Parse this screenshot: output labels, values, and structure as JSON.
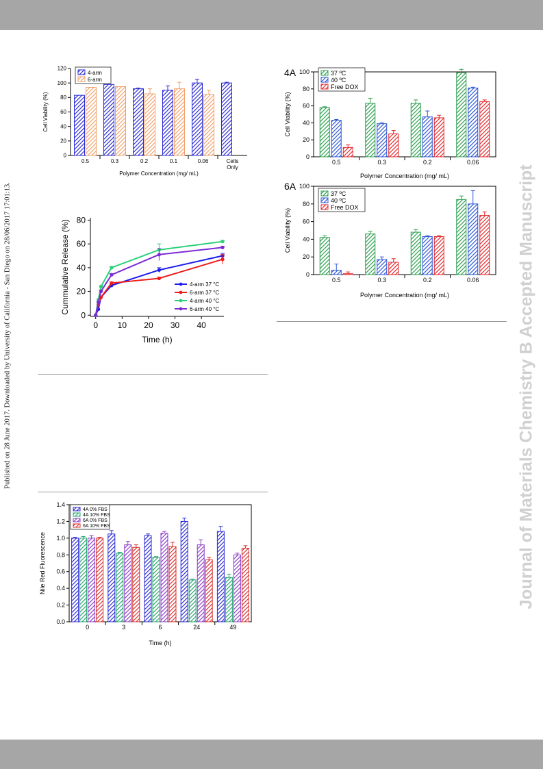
{
  "watermark": {
    "side_note": "Published on 28 June 2017. Downloaded by University of California - San Diego on 28/06/2017 17:01:13.",
    "journal": "Journal of Materials Chemistry B Accepted Manuscript"
  },
  "colors": {
    "band": "#a6a6a6",
    "rule": "#9a9a9a",
    "watermark": "#d0d0d0"
  },
  "chart_data": [
    {
      "id": "arms_viability",
      "type": "bar",
      "title": "",
      "xlabel": "Polymer Concentration (mg/ mL)",
      "ylabel": "Cell Viability (%)",
      "ylim": [
        0,
        120
      ],
      "yticks": [
        0,
        20,
        40,
        60,
        80,
        100,
        120
      ],
      "categories": [
        "0.5",
        "0.3",
        "0.2",
        "0.1",
        "0.06",
        "Cells Only"
      ],
      "legend_position": "top-left",
      "series": [
        {
          "name": "4-arm",
          "color": "#2b2bd6",
          "values": [
            83,
            98,
            92,
            90,
            100,
            100
          ],
          "errors": [
            0,
            6,
            1,
            6,
            5,
            1
          ]
        },
        {
          "name": "6-arm",
          "color": "#f2a06a",
          "values": [
            94,
            95,
            85,
            92,
            84,
            null
          ],
          "errors": [
            0,
            0,
            7,
            9,
            6,
            0
          ]
        }
      ]
    },
    {
      "id": "release",
      "type": "line",
      "title": "",
      "xlabel": "Time (h)",
      "ylabel": "Cummulative Release (%)",
      "xlim": [
        -2,
        48.5
      ],
      "ylim": [
        -1,
        82
      ],
      "xticks": [
        0,
        10,
        20,
        30,
        40
      ],
      "yticks": [
        0,
        20,
        40,
        60,
        80
      ],
      "x": [
        0,
        1,
        2,
        6,
        24,
        48
      ],
      "legend_position": "bottom-right",
      "series": [
        {
          "name": "4-arm 37 °C",
          "color": "#1c1cf0",
          "values": [
            0,
            5,
            15,
            25,
            38,
            50
          ],
          "errors": [
            0,
            0,
            1,
            1,
            2,
            2
          ]
        },
        {
          "name": "6-arm 37 °C",
          "color": "#ee1c1c",
          "values": [
            0,
            9,
            15,
            27,
            31,
            47
          ],
          "errors": [
            0,
            0,
            1,
            1,
            1,
            4
          ]
        },
        {
          "name": "4-arm 40 °C",
          "color": "#2bd17a",
          "values": [
            0,
            13,
            24,
            40,
            55,
            62
          ],
          "errors": [
            0,
            0,
            1,
            1,
            5,
            1
          ]
        },
        {
          "name": "6-arm 40 °C",
          "color": "#7a2bd6",
          "values": [
            0,
            11,
            20,
            34,
            51,
            57
          ],
          "errors": [
            0,
            0,
            1,
            1,
            5,
            1
          ]
        }
      ]
    },
    {
      "id": "fbs",
      "type": "bar",
      "title": "",
      "xlabel": "Time (h)",
      "ylabel": "Nile Red Fluorescence",
      "ylim": [
        0,
        1.4
      ],
      "yticks": [
        "0.0",
        "0.2",
        "0.4",
        "0.6",
        "0.8",
        "1.0",
        "1.2",
        "1.4"
      ],
      "categories": [
        "0",
        "3",
        "6",
        "24",
        "49"
      ],
      "legend_position": "top-left",
      "series": [
        {
          "name": "4A  0% FBS",
          "color": "#2b2bd6",
          "values": [
            1.0,
            1.05,
            1.03,
            1.2,
            1.08
          ],
          "errors": [
            0.01,
            0.04,
            0.02,
            0.04,
            0.06
          ]
        },
        {
          "name": "4A 10% FBS",
          "color": "#27a36e",
          "values": [
            1.0,
            0.82,
            0.77,
            0.5,
            0.53
          ],
          "errors": [
            0.02,
            0.01,
            0.01,
            0.01,
            0.04
          ]
        },
        {
          "name": "6A  0% FBS",
          "color": "#8a3cc6",
          "values": [
            1.0,
            0.92,
            1.06,
            0.92,
            0.8
          ],
          "errors": [
            0.03,
            0.04,
            0.02,
            0.06,
            0.02
          ]
        },
        {
          "name": "6A 10% FBS",
          "color": "#d8302f",
          "values": [
            1.0,
            0.89,
            0.9,
            0.74,
            0.88
          ],
          "errors": [
            0.01,
            0.03,
            0.05,
            0.03,
            0.03
          ]
        }
      ]
    },
    {
      "id": "dox_4a",
      "type": "bar",
      "title": "4A",
      "xlabel": "Polymer Concentration (mg/ mL)",
      "ylabel": "Cell Viability (%)",
      "ylim": [
        0,
        100
      ],
      "yticks": [
        0,
        20,
        40,
        60,
        80,
        100
      ],
      "categories": [
        "0.5",
        "0.3",
        "0.2",
        "0.06"
      ],
      "legend_position": "top-left",
      "series": [
        {
          "name": "37 ºC",
          "color": "#2a9e4c",
          "values": [
            58,
            63,
            63,
            99
          ],
          "errors": [
            1,
            6,
            4,
            4
          ]
        },
        {
          "name": "40 ºC",
          "color": "#2b54d6",
          "values": [
            43,
            39,
            47,
            81
          ],
          "errors": [
            1,
            1,
            7,
            1
          ]
        },
        {
          "name": "Free DOX",
          "color": "#e2262b",
          "values": [
            11,
            27,
            46,
            65
          ],
          "errors": [
            3,
            4,
            3,
            2
          ]
        }
      ]
    },
    {
      "id": "dox_6a",
      "type": "bar",
      "title": "6A",
      "xlabel": "Polymer Concentration (mg/ mL)",
      "ylabel": "Cell Viability (%)",
      "ylim": [
        0,
        100
      ],
      "yticks": [
        0,
        20,
        40,
        60,
        80,
        100
      ],
      "categories": [
        "0.5",
        "0.3",
        "0.2",
        "0.06"
      ],
      "legend_position": "top-left",
      "series": [
        {
          "name": "37 ºC",
          "color": "#2a9e4c",
          "values": [
            42,
            46,
            48,
            85
          ],
          "errors": [
            2,
            3,
            3,
            4
          ]
        },
        {
          "name": "40 ºC",
          "color": "#2b54d6",
          "values": [
            5,
            17,
            43,
            80
          ],
          "errors": [
            7,
            3,
            1,
            15
          ]
        },
        {
          "name": "Free DOX",
          "color": "#e2262b",
          "values": [
            1,
            14,
            43,
            67
          ],
          "errors": [
            2,
            4,
            1,
            4
          ]
        }
      ]
    }
  ]
}
